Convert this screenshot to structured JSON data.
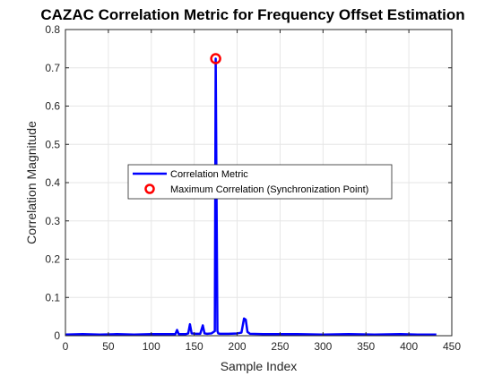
{
  "chart_data": {
    "type": "line",
    "title": "CAZAC Correlation Metric for Frequency Offset Estimation",
    "xlabel": "Sample Index",
    "ylabel": "Correlation Magnitude",
    "xlim": [
      0,
      450
    ],
    "ylim": [
      0,
      0.8
    ],
    "xticks": [
      "0",
      "50",
      "100",
      "150",
      "200",
      "250",
      "300",
      "350",
      "400",
      "450"
    ],
    "yticks": [
      "0",
      "0.1",
      "0.2",
      "0.3",
      "0.4",
      "0.5",
      "0.6",
      "0.7",
      "0.8"
    ],
    "grid": true,
    "legend_position": "middle-left",
    "series": [
      {
        "name": "Correlation Metric",
        "color": "#0000ff",
        "x": [
          0,
          20,
          40,
          60,
          80,
          100,
          120,
          128,
          130,
          132,
          140,
          143,
          145,
          147,
          152,
          157,
          160,
          162,
          165,
          170,
          174,
          175,
          176,
          177,
          178,
          180,
          190,
          200,
          205,
          208,
          210,
          212,
          215,
          230,
          250,
          270,
          300,
          330,
          360,
          390,
          410,
          432
        ],
        "y": [
          0.003,
          0.004,
          0.003,
          0.004,
          0.003,
          0.004,
          0.004,
          0.004,
          0.015,
          0.004,
          0.004,
          0.006,
          0.03,
          0.006,
          0.005,
          0.005,
          0.027,
          0.006,
          0.005,
          0.006,
          0.012,
          0.724,
          0.36,
          0.012,
          0.006,
          0.005,
          0.005,
          0.006,
          0.008,
          0.045,
          0.042,
          0.01,
          0.005,
          0.004,
          0.004,
          0.004,
          0.003,
          0.004,
          0.003,
          0.004,
          0.003,
          0.003
        ]
      },
      {
        "name": "Maximum Correlation (Synchronization Point)",
        "type": "scatter",
        "marker": "circle",
        "color": "#ff0000",
        "x": [
          175
        ],
        "y": [
          0.724
        ]
      }
    ]
  }
}
